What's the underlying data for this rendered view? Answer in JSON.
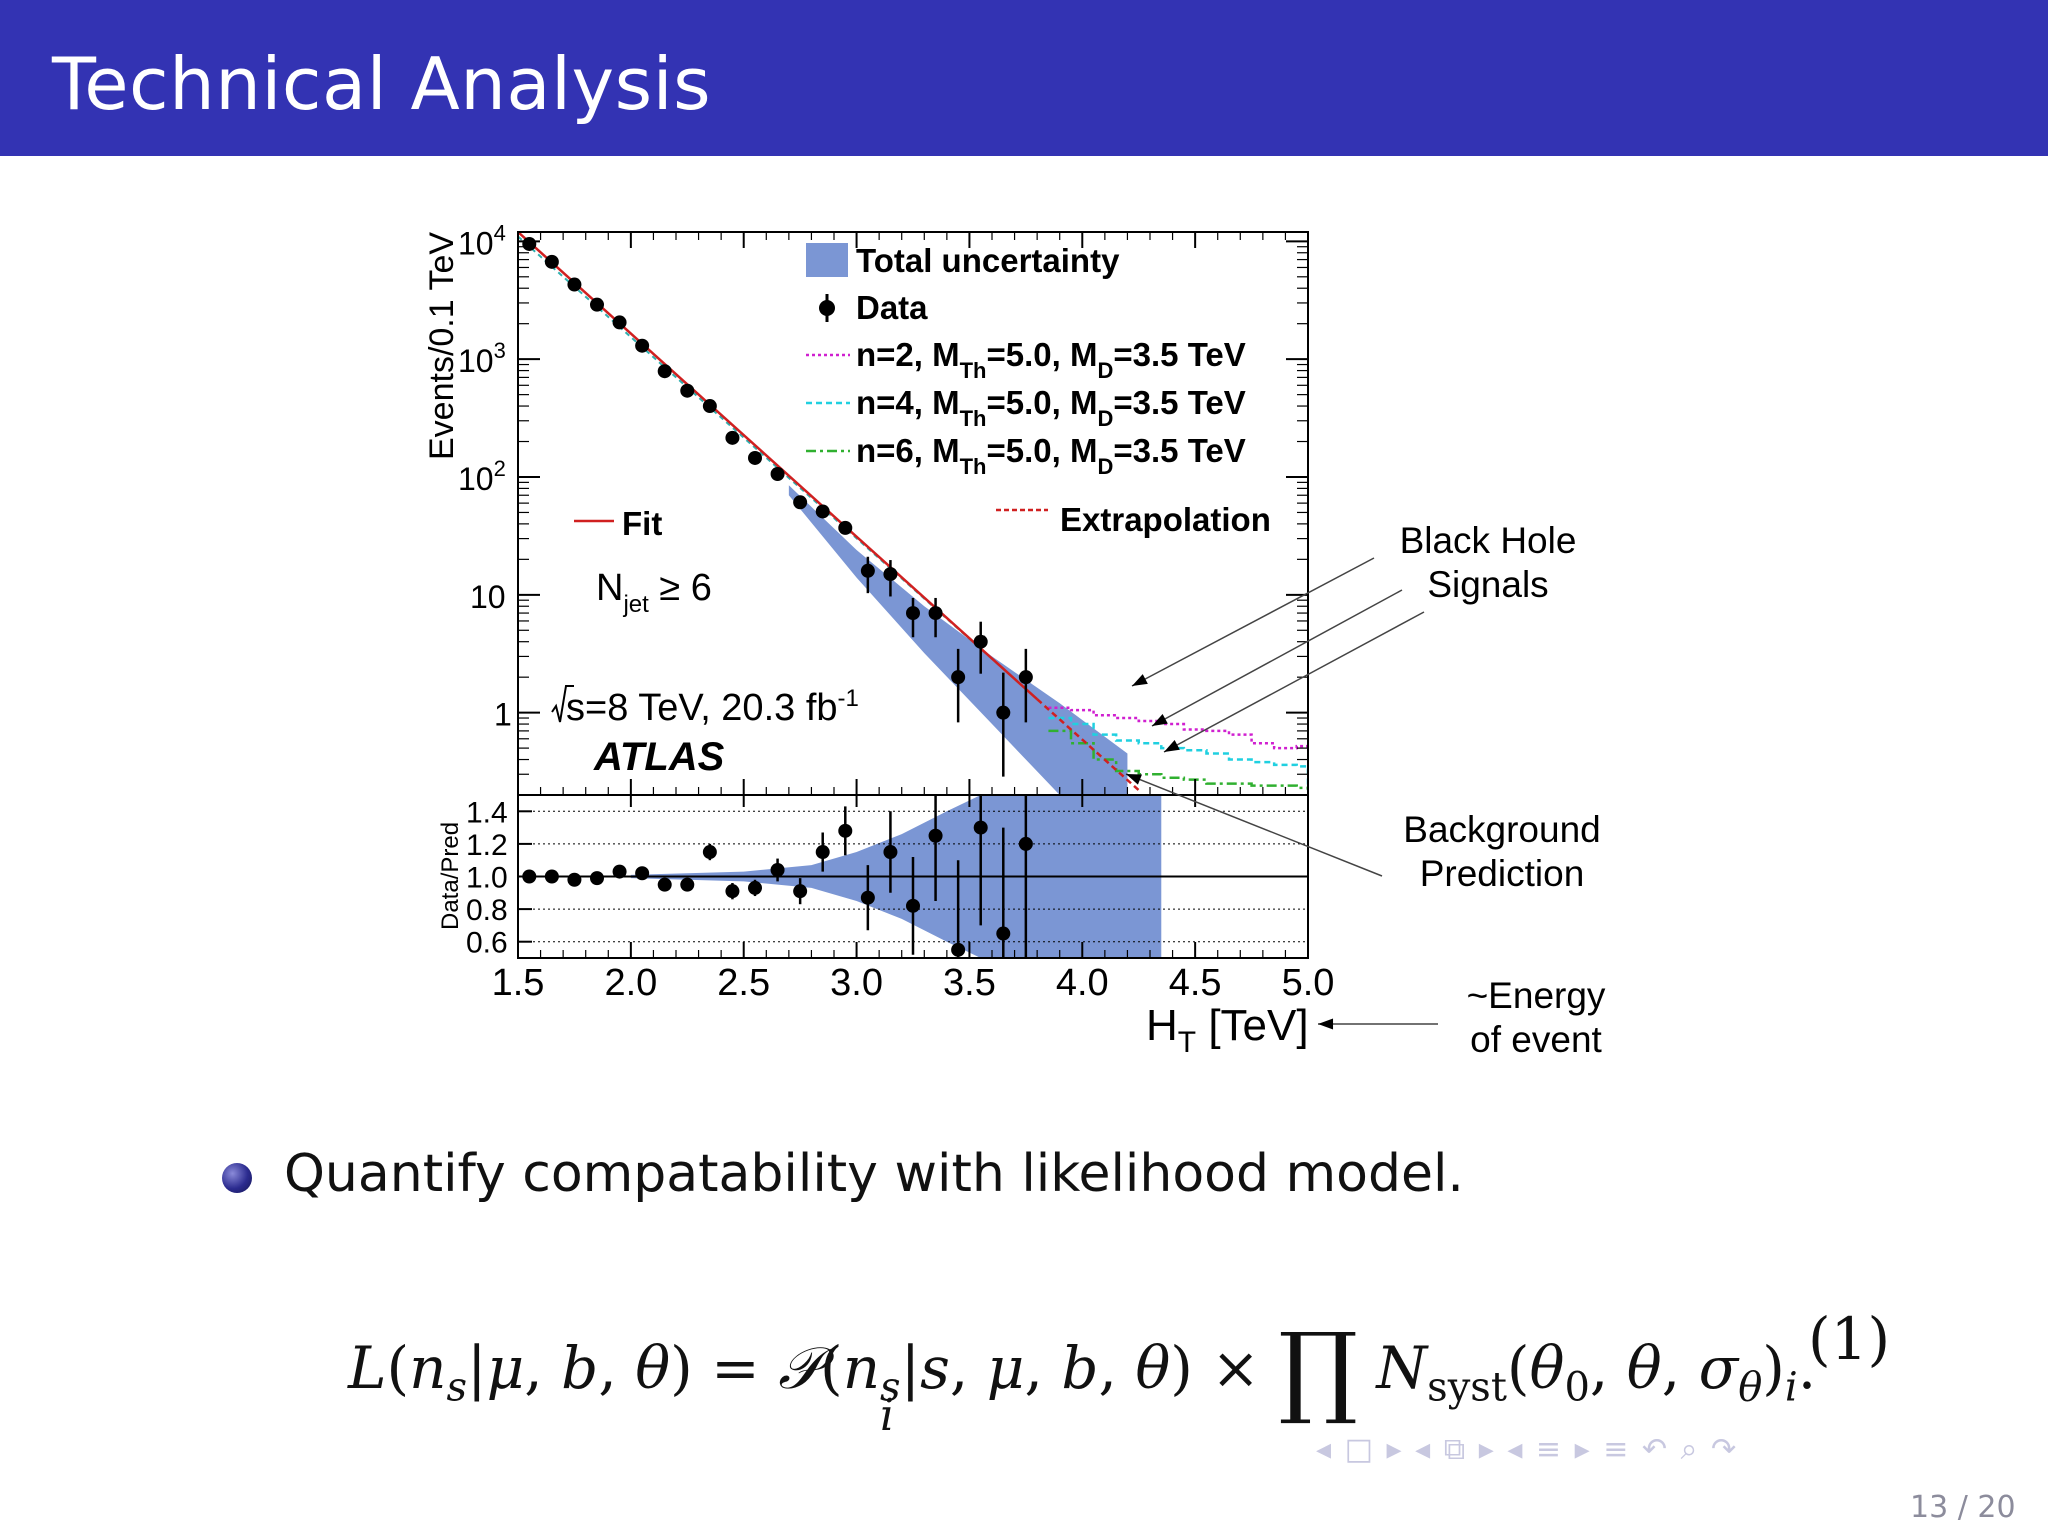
{
  "slide": {
    "title": "Technical Analysis",
    "bullet": "Quantify compatability with likelihood model.",
    "equation_number": "(1)",
    "page": "13 / 20",
    "nav_icons": [
      "nav-prev-frame-icon",
      "nav-frame-icon",
      "nav-next-frame-icon",
      "nav-prev-subsection-icon",
      "nav-subsection-icon",
      "nav-next-subsection-icon",
      "nav-prev-section-icon",
      "nav-section-icon",
      "nav-next-section-icon",
      "nav-toc-icon",
      "nav-search-icon",
      "nav-zoom-icon",
      "nav-back-icon"
    ]
  },
  "annotations": {
    "signals": [
      "Black Hole",
      "Signals"
    ],
    "background": [
      "Background",
      "Prediction"
    ],
    "energy": [
      "~Energy",
      "of event"
    ]
  },
  "chart_data": {
    "type": "line",
    "xlim": [
      1.5,
      5.0
    ],
    "x_ticks": [
      "1.5",
      "2.0",
      "2.5",
      "3.0",
      "3.5",
      "4.0",
      "4.5",
      "5.0"
    ],
    "upper": {
      "ylabel": "Events/0.1 TeV",
      "yscale": "log",
      "ylim": [
        0.2,
        12000
      ],
      "y_ticks": [
        {
          "v": 10000,
          "base": "10",
          "exp": "4"
        },
        {
          "v": 1000,
          "base": "10",
          "exp": "3"
        },
        {
          "v": 100,
          "base": "10",
          "exp": "2"
        },
        {
          "v": 10,
          "base": "10",
          "exp": ""
        },
        {
          "v": 1,
          "base": "1",
          "exp": ""
        }
      ],
      "legend": {
        "uncertainty": "Total uncertainty",
        "data": "Data",
        "n2": {
          "pre": "n=2, M",
          "sub1": "Th",
          "mid": "=5.0, M",
          "sub2": "D",
          "post": "=3.5 TeV"
        },
        "n4": {
          "pre": "n=4, M",
          "sub1": "Th",
          "mid": "=5.0, M",
          "sub2": "D",
          "post": "=3.5 TeV"
        },
        "n6": {
          "pre": "n=6, M",
          "sub1": "Th",
          "mid": "=5.0, M",
          "sub2": "D",
          "post": "=3.5 TeV"
        },
        "fit": "Fit",
        "extrapolation": "Extrapolation"
      },
      "labels": {
        "njet_main": "N",
        "njet_sub": "jet",
        "njet_cond": "≥ 6",
        "energy": "s=8 TeV, 20.3 fb",
        "energy_exp": "-1",
        "experiment": "ATLAS"
      },
      "data": [
        {
          "x": 1.55,
          "y": 9500
        },
        {
          "x": 1.65,
          "y": 6700
        },
        {
          "x": 1.75,
          "y": 4300
        },
        {
          "x": 1.85,
          "y": 2900
        },
        {
          "x": 1.95,
          "y": 2050
        },
        {
          "x": 2.05,
          "y": 1300
        },
        {
          "x": 2.15,
          "y": 790
        },
        {
          "x": 2.25,
          "y": 540
        },
        {
          "x": 2.35,
          "y": 400
        },
        {
          "x": 2.45,
          "y": 215
        },
        {
          "x": 2.55,
          "y": 145
        },
        {
          "x": 2.65,
          "y": 106
        },
        {
          "x": 2.75,
          "y": 61
        },
        {
          "x": 2.85,
          "y": 51
        },
        {
          "x": 2.95,
          "y": 37
        },
        {
          "x": 3.05,
          "y": 16
        },
        {
          "x": 3.15,
          "y": 15
        },
        {
          "x": 3.25,
          "y": 7
        },
        {
          "x": 3.35,
          "y": 7
        },
        {
          "x": 3.45,
          "y": 2
        },
        {
          "x": 3.55,
          "y": 4
        },
        {
          "x": 3.65,
          "y": 1
        },
        {
          "x": 3.75,
          "y": 2
        }
      ],
      "fit": {
        "x": [
          1.5,
          3.8
        ],
        "y": [
          12000,
          1.3
        ]
      },
      "extrapolation": {
        "x": [
          3.8,
          4.25
        ],
        "y": [
          1.3,
          0.22
        ]
      },
      "band": {
        "x": [
          2.7,
          3.0,
          3.3,
          3.6,
          3.9,
          4.2
        ],
        "low": [
          70,
          14,
          3.2,
          0.8,
          0.2,
          0.05
        ],
        "high": [
          85,
          24,
          8,
          3,
          1.2,
          0.45
        ]
      },
      "signals": {
        "n2": {
          "x": [
            3.85,
            3.95,
            4.05,
            4.15,
            4.25,
            4.35,
            4.45,
            4.55,
            4.65,
            4.75,
            4.85,
            4.95,
            5.0
          ],
          "y": [
            1.1,
            1.05,
            0.95,
            0.9,
            0.85,
            0.8,
            0.72,
            0.7,
            0.65,
            0.55,
            0.5,
            0.52,
            0.48
          ]
        },
        "n4": {
          "x": [
            3.85,
            3.95,
            4.05,
            4.15,
            4.25,
            4.35,
            4.45,
            4.55,
            4.65,
            4.75,
            4.85,
            4.95,
            5.0
          ],
          "y": [
            0.9,
            0.8,
            0.65,
            0.58,
            0.55,
            0.5,
            0.48,
            0.45,
            0.4,
            0.38,
            0.36,
            0.35,
            0.22
          ]
        },
        "n6": {
          "x": [
            3.85,
            3.95,
            4.05,
            4.15,
            4.25,
            4.35,
            4.45,
            4.55,
            4.65,
            4.75,
            4.85,
            4.95,
            5.0
          ],
          "y": [
            0.7,
            0.55,
            0.4,
            0.32,
            0.3,
            0.28,
            0.27,
            0.25,
            0.25,
            0.24,
            0.24,
            0.23,
            0.22
          ]
        }
      }
    },
    "ratio": {
      "ylabel": "Data/Pred",
      "ylim": [
        0.5,
        1.5
      ],
      "y_ticks": [
        "0.6",
        "0.8",
        "1.0",
        "1.2",
        "1.4"
      ],
      "data": [
        {
          "x": 1.55,
          "y": 1.0,
          "e": 0.01
        },
        {
          "x": 1.65,
          "y": 1.0,
          "e": 0.01
        },
        {
          "x": 1.75,
          "y": 0.98,
          "e": 0.01
        },
        {
          "x": 1.85,
          "y": 0.99,
          "e": 0.01
        },
        {
          "x": 1.95,
          "y": 1.03,
          "e": 0.01
        },
        {
          "x": 2.05,
          "y": 1.02,
          "e": 0.01
        },
        {
          "x": 2.15,
          "y": 0.95,
          "e": 0.01
        },
        {
          "x": 2.25,
          "y": 0.95,
          "e": 0.01
        },
        {
          "x": 2.35,
          "y": 1.15,
          "e": 0.05
        },
        {
          "x": 2.45,
          "y": 0.91,
          "e": 0.05
        },
        {
          "x": 2.55,
          "y": 0.93,
          "e": 0.05
        },
        {
          "x": 2.65,
          "y": 1.04,
          "e": 0.07
        },
        {
          "x": 2.75,
          "y": 0.91,
          "e": 0.08
        },
        {
          "x": 2.85,
          "y": 1.15,
          "e": 0.12
        },
        {
          "x": 2.95,
          "y": 1.28,
          "e": 0.15
        },
        {
          "x": 3.05,
          "y": 0.87,
          "e": 0.2
        },
        {
          "x": 3.15,
          "y": 1.15,
          "e": 0.25
        },
        {
          "x": 3.25,
          "y": 0.82,
          "e": 0.3
        },
        {
          "x": 3.35,
          "y": 1.25,
          "e": 0.4
        },
        {
          "x": 3.45,
          "y": 0.55,
          "e": 0.55
        },
        {
          "x": 3.55,
          "y": 1.3,
          "e": 0.6
        },
        {
          "x": 3.65,
          "y": 0.65,
          "e": 0.65
        },
        {
          "x": 3.75,
          "y": 1.2,
          "e": 0.7
        }
      ],
      "band": {
        "x": [
          2.0,
          2.5,
          2.8,
          3.0,
          3.2,
          3.4,
          3.55,
          4.35
        ],
        "low": [
          0.99,
          0.97,
          0.93,
          0.85,
          0.74,
          0.6,
          0.5,
          0.5
        ],
        "high": [
          1.01,
          1.03,
          1.07,
          1.15,
          1.26,
          1.4,
          1.5,
          1.5
        ]
      }
    },
    "xlabel": {
      "main": "H",
      "sub": "T",
      "unit": "[TeV]"
    }
  }
}
